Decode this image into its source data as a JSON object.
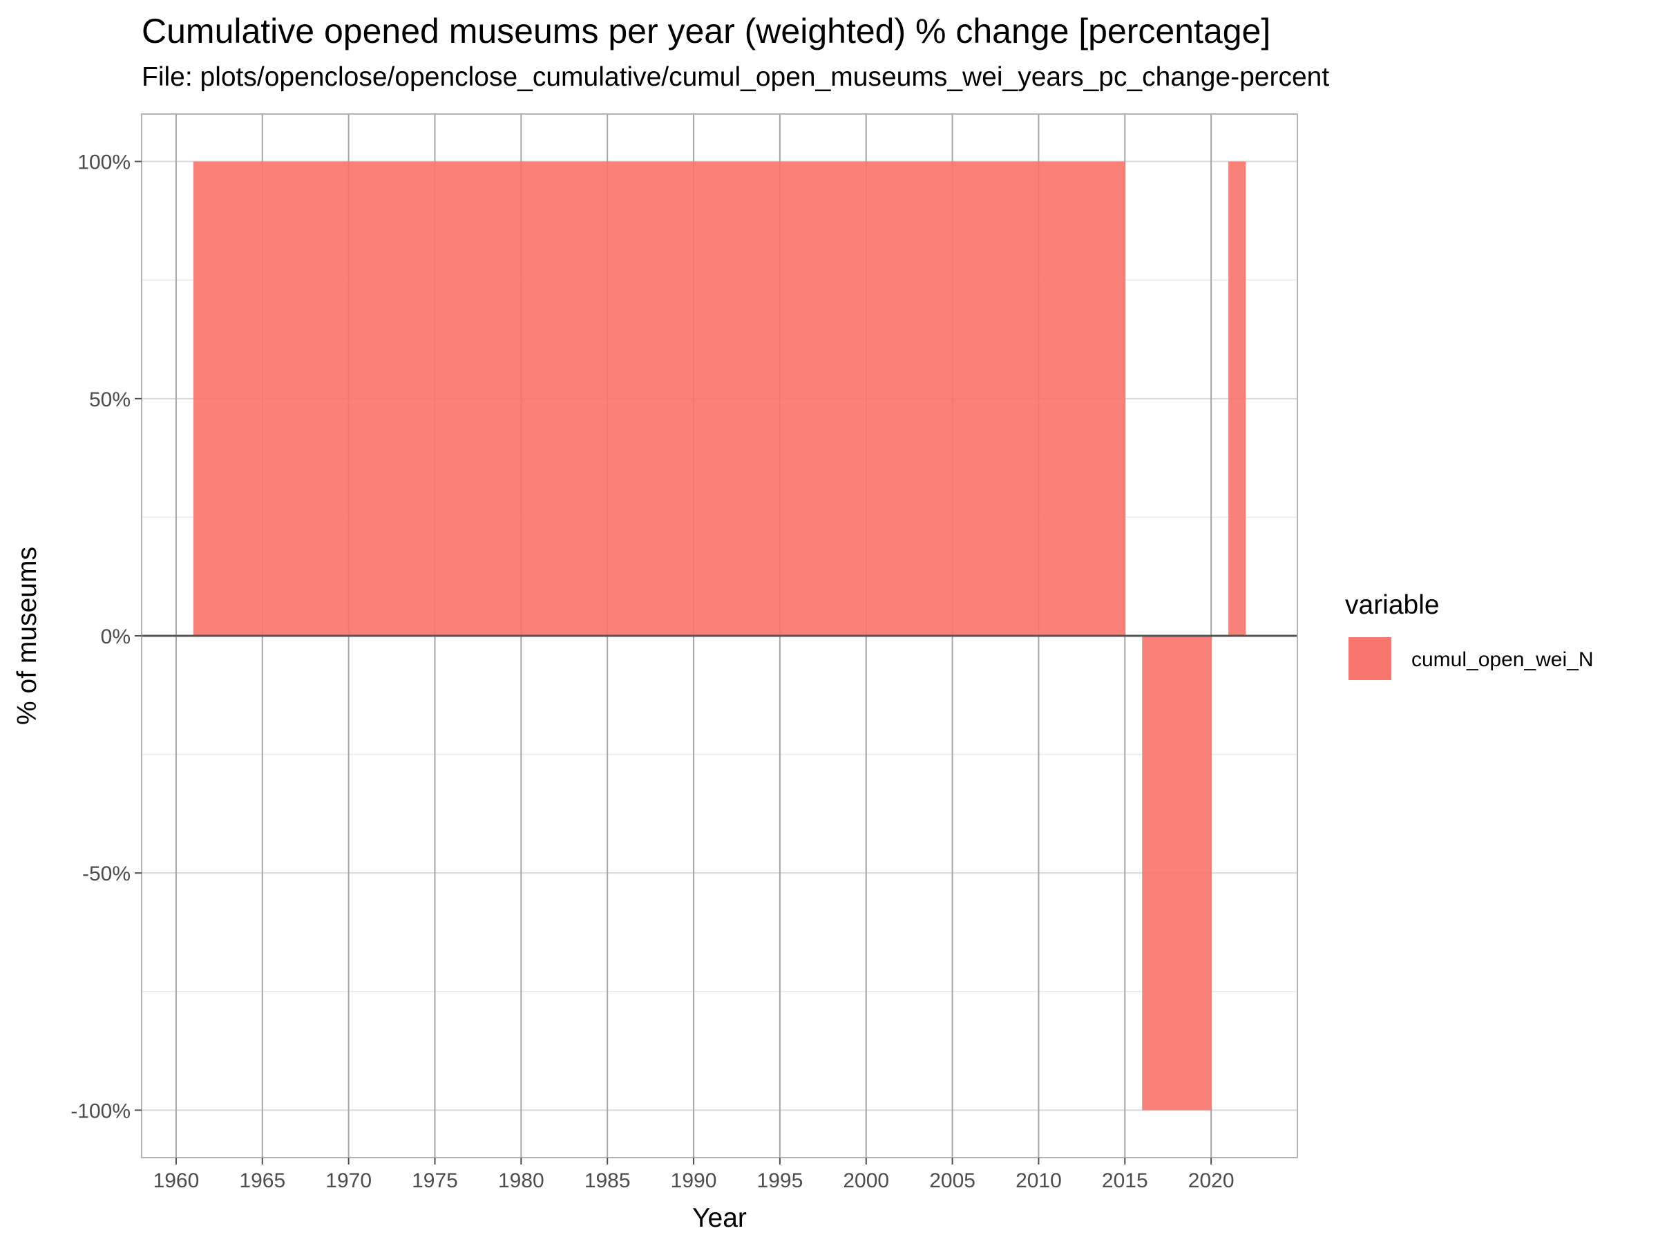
{
  "chart_data": {
    "type": "area",
    "title": "Cumulative opened museums per year (weighted) % change [percentage]",
    "subtitle": "File: plots/openclose/openclose_cumulative/cumul_open_museums_wei_years_pc_change-percent",
    "xlabel": "Year",
    "ylabel": "% of museums",
    "xlim": [
      1958,
      2025
    ],
    "ylim": [
      -110,
      110
    ],
    "x_ticks": [
      1960,
      1965,
      1970,
      1975,
      1980,
      1985,
      1990,
      1995,
      2000,
      2005,
      2010,
      2015,
      2020
    ],
    "y_ticks": [
      -100,
      -50,
      0,
      50,
      100
    ],
    "y_tick_labels": [
      "-100%",
      "-50%",
      "0%",
      "50%",
      "100%"
    ],
    "grid": true,
    "legend": {
      "title": "variable",
      "position": "right"
    },
    "series": [
      {
        "name": "cumul_open_wei_N",
        "color": "#F8766D",
        "x": [
          1961,
          1962,
          1963,
          1964,
          1965,
          1966,
          1967,
          1968,
          1969,
          1970,
          1971,
          1972,
          1973,
          1974,
          1975,
          1976,
          1977,
          1978,
          1979,
          1980,
          1981,
          1982,
          1983,
          1984,
          1985,
          1986,
          1987,
          1988,
          1989,
          1990,
          1991,
          1992,
          1993,
          1994,
          1995,
          1996,
          1997,
          1998,
          1999,
          2000,
          2001,
          2002,
          2003,
          2004,
          2005,
          2006,
          2007,
          2008,
          2009,
          2010,
          2011,
          2012,
          2013,
          2014,
          2015,
          2016,
          2017,
          2018,
          2019,
          2020,
          2021,
          2022
        ],
        "y": [
          100,
          100,
          100,
          100,
          100,
          100,
          100,
          100,
          100,
          100,
          100,
          100,
          100,
          100,
          100,
          100,
          100,
          100,
          100,
          100,
          100,
          100,
          100,
          100,
          100,
          100,
          100,
          100,
          100,
          100,
          100,
          100,
          100,
          100,
          100,
          100,
          100,
          100,
          100,
          100,
          100,
          100,
          100,
          100,
          100,
          100,
          100,
          100,
          100,
          100,
          100,
          100,
          100,
          100,
          100,
          -100,
          -100,
          -100,
          -100,
          -100,
          100,
          100
        ]
      }
    ]
  }
}
